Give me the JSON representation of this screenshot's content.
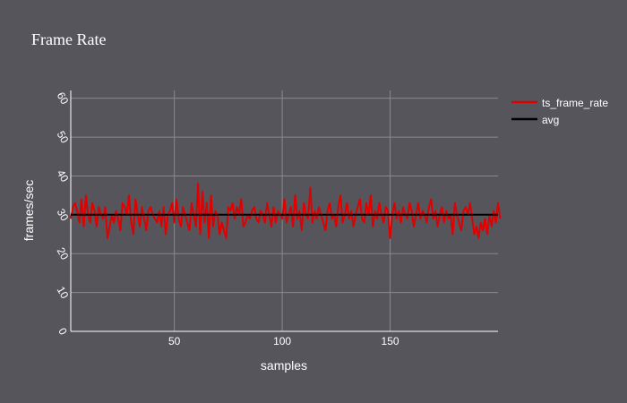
{
  "chart_data": {
    "type": "line",
    "title": "Frame Rate",
    "xlabel": "samples",
    "ylabel": "frames/sec",
    "xlim": [
      2,
      200
    ],
    "ylim": [
      0,
      62
    ],
    "xticks": [
      50,
      100,
      150
    ],
    "yticks": [
      0,
      10,
      20,
      30,
      40,
      50,
      60
    ],
    "grid": true,
    "legend_position": "top-right",
    "series": [
      {
        "name": "ts_frame_rate",
        "color": "#e00000",
        "x_start": 2,
        "values": [
          29,
          32,
          33,
          31,
          28,
          34,
          27,
          35,
          30,
          28,
          33,
          31,
          27,
          32,
          30,
          29,
          32,
          24,
          27,
          30,
          28,
          31,
          29,
          26,
          33,
          32,
          30,
          35,
          28,
          25,
          34,
          30,
          27,
          32,
          29,
          26,
          31,
          32,
          30,
          29,
          28,
          31,
          27,
          32,
          25,
          30,
          31,
          33,
          28,
          34,
          29,
          27,
          32,
          30,
          28,
          26,
          33,
          30,
          27,
          38,
          25,
          36,
          28,
          33,
          24,
          35,
          27,
          31,
          30,
          25,
          28,
          26,
          24,
          32,
          31,
          33,
          29,
          32,
          30,
          34,
          27,
          28,
          30,
          29,
          31,
          32,
          29,
          28,
          31,
          30,
          28,
          33,
          30,
          27,
          32,
          28,
          31,
          30,
          29,
          34,
          28,
          30,
          32,
          27,
          35,
          29,
          31,
          26,
          33,
          30,
          29,
          37,
          28,
          31,
          29,
          32,
          30,
          28,
          26,
          31,
          33,
          29,
          30,
          27,
          32,
          35,
          28,
          30,
          33,
          29,
          31,
          27,
          30,
          32,
          34,
          29,
          28,
          33,
          30,
          35,
          27,
          31,
          29,
          33,
          30,
          28,
          32,
          31,
          24,
          30,
          33,
          29,
          31,
          28,
          32,
          30,
          29,
          33,
          31,
          27,
          30,
          33,
          29,
          31,
          30,
          28,
          32,
          34,
          29,
          31,
          27,
          30,
          32,
          28,
          31,
          29,
          30,
          25,
          33,
          30,
          28,
          26,
          31,
          32,
          30,
          33,
          29,
          25,
          27,
          24,
          28,
          26,
          29,
          25,
          30,
          27,
          31,
          28,
          33,
          29
        ],
        "smooth": false
      },
      {
        "name": "avg",
        "color": "#000000",
        "x": [
          2,
          200
        ],
        "y": [
          30,
          30
        ]
      }
    ]
  }
}
